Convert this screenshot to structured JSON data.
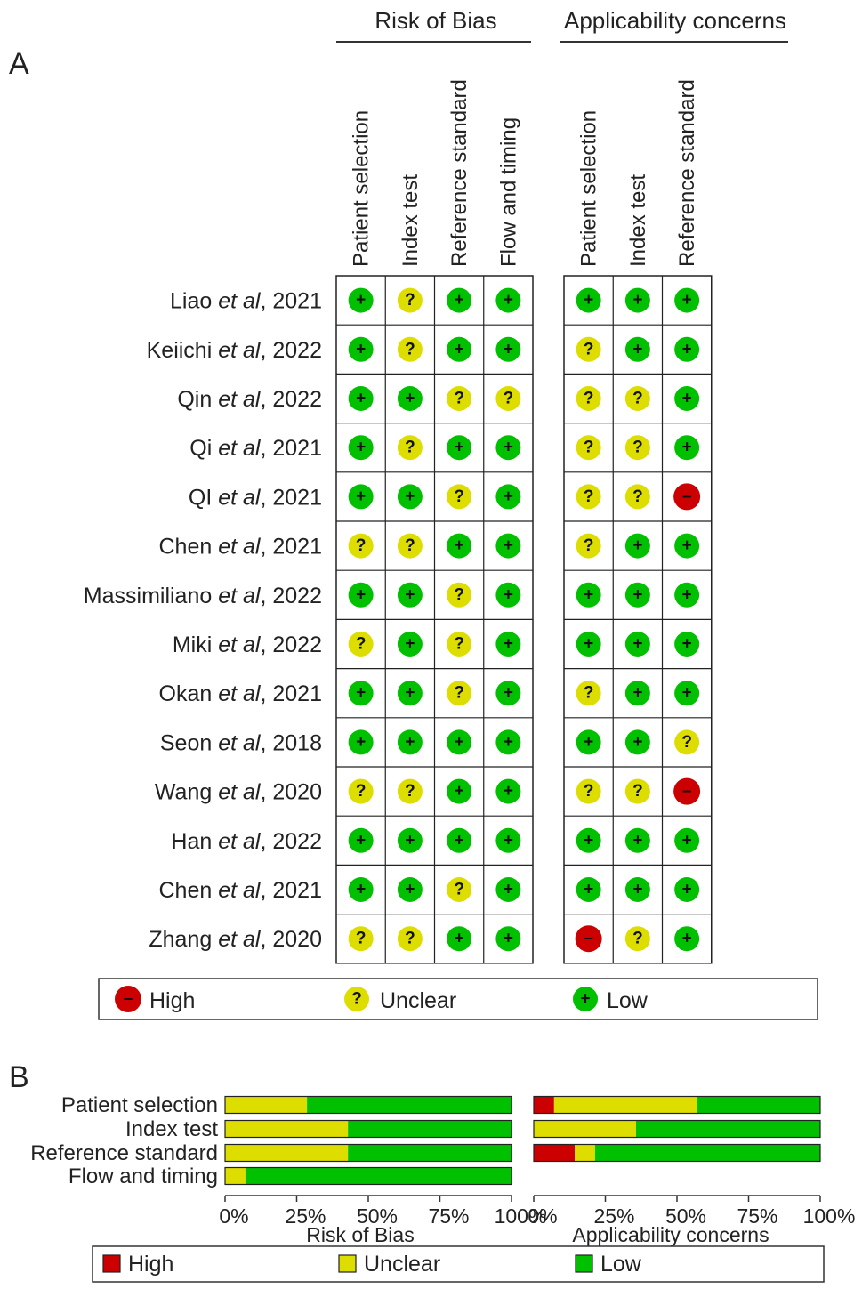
{
  "panel_a": {
    "label": "A",
    "group_risk": "Risk of Bias",
    "group_applicability": "Applicability concerns",
    "risk_columns": [
      "Patient selection",
      "Index test",
      "Reference standard",
      "Flow and timing"
    ],
    "applicability_columns": [
      "Patient selection",
      "Index test",
      "Reference standard"
    ],
    "symbols": {
      "low": "+",
      "unclear": "?",
      "high": "–"
    },
    "legend": {
      "high": "High",
      "unclear": "Unclear",
      "low": "Low"
    }
  },
  "panel_b": {
    "label": "B",
    "risk_title": "Risk of Bias",
    "applicability_title": "Applicability concerns",
    "legend": {
      "high": "High",
      "unclear": "Unclear",
      "low": "Low"
    }
  },
  "colors": {
    "high": "#cc0000",
    "unclear": "#dddd00",
    "low": "#00c000"
  },
  "chart_data": [
    {
      "type": "table",
      "title": "",
      "studies": [
        {
          "name": "Liao",
          "year": "2021",
          "risk": [
            "low",
            "unclear",
            "low",
            "low"
          ],
          "applicability": [
            "low",
            "low",
            "low"
          ]
        },
        {
          "name": "Keiichi",
          "year": "2022",
          "risk": [
            "low",
            "unclear",
            "low",
            "low"
          ],
          "applicability": [
            "unclear",
            "low",
            "low"
          ]
        },
        {
          "name": "Qin",
          "year": "2022",
          "risk": [
            "low",
            "low",
            "unclear",
            "unclear"
          ],
          "applicability": [
            "unclear",
            "unclear",
            "low"
          ]
        },
        {
          "name": "Qi",
          "year": "2021",
          "risk": [
            "low",
            "unclear",
            "low",
            "low"
          ],
          "applicability": [
            "unclear",
            "unclear",
            "low"
          ]
        },
        {
          "name": "QI",
          "year": "2021",
          "risk": [
            "low",
            "low",
            "unclear",
            "low"
          ],
          "applicability": [
            "unclear",
            "unclear",
            "high"
          ]
        },
        {
          "name": "Chen",
          "year": "2021",
          "risk": [
            "unclear",
            "unclear",
            "low",
            "low"
          ],
          "applicability": [
            "unclear",
            "low",
            "low"
          ]
        },
        {
          "name": "Massimiliano",
          "year": "2022",
          "risk": [
            "low",
            "low",
            "unclear",
            "low"
          ],
          "applicability": [
            "low",
            "low",
            "low"
          ]
        },
        {
          "name": "Miki",
          "year": "2022",
          "risk": [
            "unclear",
            "low",
            "unclear",
            "low"
          ],
          "applicability": [
            "low",
            "low",
            "low"
          ]
        },
        {
          "name": "Okan",
          "year": "2021",
          "risk": [
            "low",
            "low",
            "unclear",
            "low"
          ],
          "applicability": [
            "unclear",
            "low",
            "low"
          ]
        },
        {
          "name": "Seon",
          "year": "2018",
          "risk": [
            "low",
            "low",
            "low",
            "low"
          ],
          "applicability": [
            "low",
            "low",
            "unclear"
          ]
        },
        {
          "name": "Wang",
          "year": "2020",
          "risk": [
            "unclear",
            "unclear",
            "low",
            "low"
          ],
          "applicability": [
            "unclear",
            "unclear",
            "high"
          ]
        },
        {
          "name": "Han",
          "year": "2022",
          "risk": [
            "low",
            "low",
            "low",
            "low"
          ],
          "applicability": [
            "low",
            "low",
            "low"
          ]
        },
        {
          "name": "Chen",
          "year": "2021",
          "risk": [
            "low",
            "low",
            "unclear",
            "low"
          ],
          "applicability": [
            "low",
            "low",
            "low"
          ]
        },
        {
          "name": "Zhang",
          "year": "2020",
          "risk": [
            "unclear",
            "unclear",
            "low",
            "low"
          ],
          "applicability": [
            "high",
            "unclear",
            "low"
          ]
        }
      ],
      "etal": "et al",
      "legend": [
        "High",
        "Unclear",
        "Low"
      ]
    },
    {
      "type": "bar",
      "title": "Risk of Bias",
      "categories": [
        "Patient selection",
        "Index test",
        "Reference standard",
        "Flow and timing"
      ],
      "series": [
        {
          "name": "High",
          "values": [
            0,
            0,
            0,
            0
          ]
        },
        {
          "name": "Unclear",
          "values": [
            28.6,
            42.9,
            42.9,
            7.1
          ]
        },
        {
          "name": "Low",
          "values": [
            71.4,
            57.1,
            57.1,
            92.9
          ]
        }
      ],
      "stacked": true,
      "xlim": [
        0,
        100
      ],
      "ticks": [
        "0%",
        "25%",
        "50%",
        "75%",
        "100%"
      ]
    },
    {
      "type": "bar",
      "title": "Applicability concerns",
      "categories": [
        "Patient selection",
        "Index test",
        "Reference standard"
      ],
      "series": [
        {
          "name": "High",
          "values": [
            7.1,
            0,
            14.3
          ]
        },
        {
          "name": "Unclear",
          "values": [
            50.0,
            35.7,
            7.1
          ]
        },
        {
          "name": "Low",
          "values": [
            42.9,
            64.3,
            78.6
          ]
        }
      ],
      "stacked": true,
      "xlim": [
        0,
        100
      ],
      "ticks": [
        "0%",
        "25%",
        "50%",
        "75%",
        "100%"
      ]
    }
  ]
}
